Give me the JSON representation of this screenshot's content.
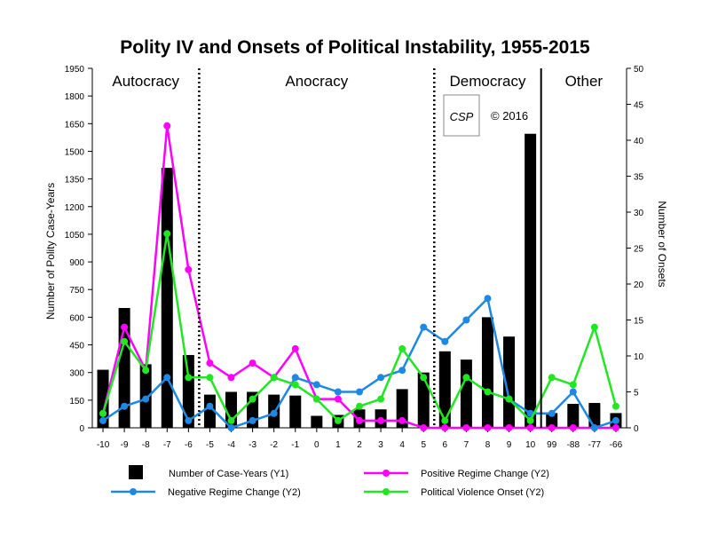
{
  "chart_data": {
    "type": "bar",
    "title": "Polity IV and Onsets of Political Instability, 1955-2015",
    "ylabel": "Number of Polity Case-Years",
    "y2label": "Number of Onsets",
    "xlabel": "",
    "ylim": [
      0,
      1950
    ],
    "y2lim": [
      0,
      50
    ],
    "yticks": [
      "0",
      "150",
      "300",
      "450",
      "600",
      "750",
      "900",
      "1050",
      "1200",
      "1350",
      "1500",
      "1650",
      "1800",
      "1950"
    ],
    "y2ticks": [
      "0",
      "5",
      "10",
      "15",
      "20",
      "25",
      "30",
      "35",
      "40",
      "45",
      "50"
    ],
    "categories": [
      "-10",
      "-9",
      "-8",
      "-7",
      "-6",
      "-5",
      "-4",
      "-3",
      "-2",
      "-1",
      "0",
      "1",
      "2",
      "3",
      "4",
      "5",
      "6",
      "7",
      "8",
      "9",
      "10",
      "99",
      "-88",
      "-77",
      "-66"
    ],
    "regions": [
      {
        "label": "Autocracy"
      },
      {
        "label": "Anocracy"
      },
      {
        "label": "Democracy"
      },
      {
        "label": "Other"
      }
    ],
    "watermark": {
      "logo_text": "CSP",
      "copyright": "© 2016"
    },
    "legend_position": "bottom",
    "series": [
      {
        "name": "Number of Case-Years (Y1)",
        "axis": "y1",
        "type": "bar",
        "color": "#000000",
        "values": [
          315,
          650,
          345,
          1410,
          395,
          180,
          195,
          195,
          180,
          175,
          65,
          70,
          100,
          100,
          210,
          300,
          415,
          370,
          600,
          495,
          1595,
          80,
          130,
          135,
          80
        ]
      },
      {
        "name": "Positive Regime Change (Y2)",
        "axis": "y2",
        "type": "line",
        "color": "#ff00ff",
        "values": [
          2,
          14,
          8,
          42,
          22,
          9,
          7,
          9,
          7,
          11,
          4,
          4,
          1,
          1,
          1,
          0,
          0,
          0,
          0,
          0,
          0,
          0,
          0,
          0,
          0
        ]
      },
      {
        "name": "Negative Regime Change (Y2)",
        "axis": "y2",
        "type": "line",
        "color": "#1e88e5",
        "values": [
          1,
          3,
          4,
          7,
          1,
          3,
          0,
          1,
          2,
          7,
          6,
          5,
          5,
          7,
          8,
          14,
          12,
          15,
          18,
          4,
          2,
          2,
          5,
          0,
          1
        ]
      },
      {
        "name": "Political Violence Onset (Y2)",
        "axis": "y2",
        "type": "line",
        "color": "#22e622",
        "values": [
          2,
          12,
          8,
          27,
          7,
          7,
          1,
          4,
          7,
          6,
          4,
          1,
          3,
          4,
          11,
          7,
          1,
          7,
          5,
          4,
          1,
          7,
          6,
          14,
          3
        ]
      }
    ]
  }
}
